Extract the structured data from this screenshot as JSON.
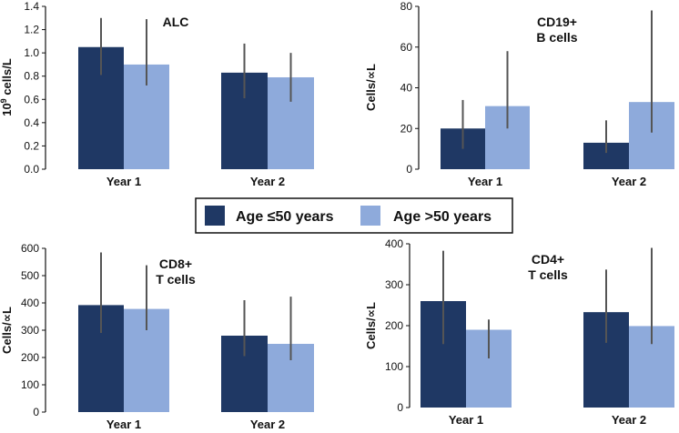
{
  "legend": [
    {
      "label": "Age ≤50 years",
      "color": "#1f3864"
    },
    {
      "label": "Age >50 years",
      "color": "#8eaadb"
    }
  ],
  "chart_data": [
    {
      "type": "bar",
      "title": "ALC",
      "ylabel_base": "10",
      "ylabel_sup": "9",
      "ylabel_rest": " cells/L",
      "categories": [
        "Year 1",
        "Year 2"
      ],
      "ylim": [
        0,
        1.4
      ],
      "yticks": [
        "0.0",
        "0.2",
        "0.4",
        "0.6",
        "0.8",
        "1.0",
        "1.2",
        "1.4"
      ],
      "series": [
        {
          "name": "Age ≤50 years",
          "values": [
            1.05,
            0.83
          ],
          "err_low": [
            0.81,
            0.61
          ],
          "err_high": [
            1.3,
            1.08
          ]
        },
        {
          "name": "Age >50 years",
          "values": [
            0.9,
            0.79
          ],
          "err_low": [
            0.72,
            0.58
          ],
          "err_high": [
            1.29,
            1.0
          ]
        }
      ]
    },
    {
      "type": "bar",
      "title": "CD19+\nB cells",
      "ylabel": "Cells/∝L",
      "categories": [
        "Year 1",
        "Year 2"
      ],
      "ylim": [
        0,
        80
      ],
      "yticks": [
        "0",
        "20",
        "40",
        "60",
        "80"
      ],
      "series": [
        {
          "name": "Age ≤50 years",
          "values": [
            20,
            13
          ],
          "err_low": [
            10,
            8
          ],
          "err_high": [
            34,
            24
          ]
        },
        {
          "name": "Age >50 years",
          "values": [
            31,
            33
          ],
          "err_low": [
            20,
            18
          ],
          "err_high": [
            58,
            78
          ]
        }
      ]
    },
    {
      "type": "bar",
      "title": "CD8+\nT cells",
      "ylabel": "Cells/∝L",
      "categories": [
        "Year 1",
        "Year 2"
      ],
      "ylim": [
        0,
        600
      ],
      "yticks": [
        "0",
        "100",
        "200",
        "300",
        "400",
        "500",
        "600"
      ],
      "series": [
        {
          "name": "Age ≤50 years",
          "values": [
            392,
            280
          ],
          "err_low": [
            290,
            205
          ],
          "err_high": [
            585,
            410
          ]
        },
        {
          "name": "Age >50 years",
          "values": [
            378,
            250
          ],
          "err_low": [
            300,
            190
          ],
          "err_high": [
            538,
            423
          ]
        }
      ]
    },
    {
      "type": "bar",
      "title": "CD4+\nT cells",
      "ylabel": "Cells/∝L",
      "categories": [
        "Year 1",
        "Year 2"
      ],
      "ylim": [
        0,
        400
      ],
      "yticks": [
        "0",
        "100",
        "200",
        "300",
        "400"
      ],
      "series": [
        {
          "name": "Age ≤50 years",
          "values": [
            260,
            233
          ],
          "err_low": [
            155,
            158
          ],
          "err_high": [
            383,
            337
          ]
        },
        {
          "name": "Age >50 years",
          "values": [
            190,
            199
          ],
          "err_low": [
            120,
            155
          ],
          "err_high": [
            215,
            390
          ]
        }
      ]
    }
  ]
}
